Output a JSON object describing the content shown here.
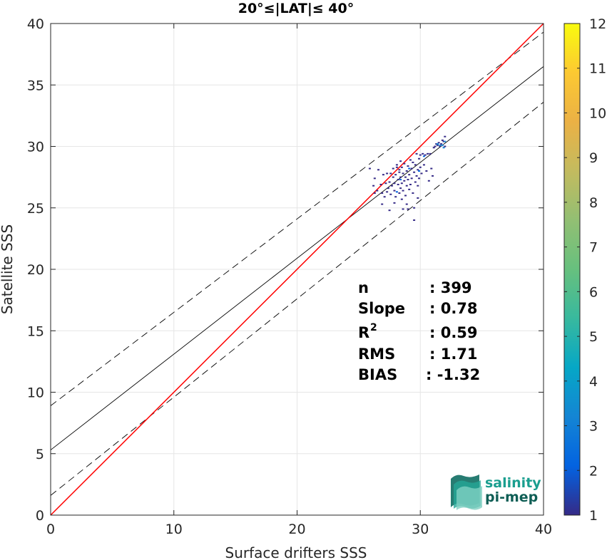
{
  "chart_data": {
    "type": "scatter",
    "title": "20°≤|LAT|≤ 40°",
    "xlabel": "Surface drifters SSS",
    "ylabel": "Satellite SSS",
    "xlim": [
      0,
      40
    ],
    "ylim": [
      0,
      40
    ],
    "x_ticks": [
      "0",
      "10",
      "20",
      "30",
      "40"
    ],
    "y_ticks": [
      "0",
      "5",
      "10",
      "15",
      "20",
      "25",
      "30",
      "35",
      "40"
    ],
    "grid": true,
    "lines": {
      "identity": {
        "color": "#ff0000",
        "intercept": 0,
        "slope": 1
      },
      "regression": {
        "color": "#000000",
        "intercept": 5.3,
        "slope": 0.78
      },
      "upper_band": {
        "color": "#000000",
        "style": "dashed",
        "intercept": 8.9,
        "slope": 0.76
      },
      "lower_band": {
        "color": "#000000",
        "style": "dashed",
        "intercept": 1.6,
        "slope": 0.8
      }
    },
    "stats": [
      {
        "label": "n",
        "value": ": 399"
      },
      {
        "label": "Slope",
        "value": ": 0.78"
      },
      {
        "label": "R",
        "sup": "2",
        "value": ": 0.59"
      },
      {
        "label": "RMS",
        "value": ": 1.71"
      },
      {
        "label": "BIAS",
        "value": ": -1.32"
      }
    ],
    "colorbar": {
      "min": 1,
      "max": 12,
      "ticks": [
        "1",
        "2",
        "3",
        "4",
        "5",
        "6",
        "7",
        "8",
        "9",
        "10",
        "11",
        "12"
      ],
      "colormap": "parula"
    },
    "points": [
      [
        25.9,
        28.2
      ],
      [
        26.6,
        28.1
      ],
      [
        26.3,
        27.4
      ],
      [
        26.2,
        26.8
      ],
      [
        26.3,
        26.2
      ],
      [
        26.5,
        26.4
      ],
      [
        26.8,
        26.9
      ],
      [
        26.9,
        26.2
      ],
      [
        27.0,
        27.7
      ],
      [
        27.1,
        25.9
      ],
      [
        27.2,
        27.0
      ],
      [
        27.3,
        26.3
      ],
      [
        27.3,
        27.8
      ],
      [
        27.4,
        26.6
      ],
      [
        27.5,
        27.1
      ],
      [
        27.6,
        26.1
      ],
      [
        27.6,
        27.8
      ],
      [
        27.7,
        26.8
      ],
      [
        27.8,
        27.5
      ],
      [
        27.8,
        28.2
      ],
      [
        27.9,
        26.4
      ],
      [
        27.9,
        27.0
      ],
      [
        28.0,
        25.9
      ],
      [
        28.0,
        27.7
      ],
      [
        28.1,
        28.3
      ],
      [
        28.1,
        28.5
      ],
      [
        28.2,
        26.9
      ],
      [
        28.2,
        27.3
      ],
      [
        28.3,
        26.2
      ],
      [
        28.3,
        27.9
      ],
      [
        28.3,
        28.1
      ],
      [
        28.4,
        26.6
      ],
      [
        28.4,
        27.5
      ],
      [
        28.4,
        28.8
      ],
      [
        28.5,
        25.7
      ],
      [
        28.5,
        27.0
      ],
      [
        28.5,
        28.3
      ],
      [
        28.6,
        26.4
      ],
      [
        28.6,
        27.8
      ],
      [
        28.7,
        27.2
      ],
      [
        28.7,
        28.6
      ],
      [
        28.8,
        26.0
      ],
      [
        28.8,
        27.5
      ],
      [
        28.9,
        26.8
      ],
      [
        28.9,
        28.0
      ],
      [
        29.0,
        24.9
      ],
      [
        29.0,
        27.3
      ],
      [
        29.0,
        28.4
      ],
      [
        29.1,
        26.5
      ],
      [
        29.1,
        27.7
      ],
      [
        29.2,
        28.9
      ],
      [
        29.2,
        26.9
      ],
      [
        29.3,
        28.2
      ],
      [
        29.3,
        27.4
      ],
      [
        29.4,
        26.2
      ],
      [
        29.4,
        28.7
      ],
      [
        29.5,
        27.9
      ],
      [
        29.5,
        24.0
      ],
      [
        29.5,
        25.0
      ],
      [
        29.6,
        27.1
      ],
      [
        29.6,
        28.5
      ],
      [
        29.7,
        29.4
      ],
      [
        29.7,
        27.6
      ],
      [
        29.8,
        26.8
      ],
      [
        29.8,
        28.1
      ],
      [
        29.9,
        29.0
      ],
      [
        29.9,
        27.4
      ],
      [
        30.0,
        28.3
      ],
      [
        30.0,
        29.3
      ],
      [
        30.1,
        27.8
      ],
      [
        30.2,
        29.4
      ],
      [
        30.3,
        28.5
      ],
      [
        30.4,
        29.3
      ],
      [
        30.5,
        28.0
      ],
      [
        30.6,
        29.4
      ],
      [
        30.8,
        29.4
      ],
      [
        31.0,
        27.6
      ],
      [
        31.2,
        30.0
      ],
      [
        31.4,
        30.1
      ],
      [
        31.5,
        30.3
      ],
      [
        31.6,
        30.0
      ],
      [
        31.7,
        30.2
      ],
      [
        31.8,
        30.5
      ],
      [
        31.9,
        30.4
      ],
      [
        32.0,
        30.8
      ],
      [
        32.0,
        30.0
      ],
      [
        31.3,
        30.2
      ],
      [
        31.1,
        29.9
      ],
      [
        30.9,
        28.2
      ],
      [
        30.7,
        27.2
      ],
      [
        29.8,
        25.8
      ],
      [
        27.9,
        25.4
      ],
      [
        27.5,
        24.8
      ],
      [
        26.9,
        25.3
      ],
      [
        28.9,
        25.3
      ],
      [
        28.6,
        24.9
      ]
    ],
    "hot_points": [
      [
        31.4,
        30.2
      ],
      [
        31.6,
        30.1
      ],
      [
        31.8,
        30.1
      ],
      [
        32.0,
        30.4
      ],
      [
        31.9,
        29.9
      ],
      [
        29.9,
        28.0
      ],
      [
        28.1,
        26.3
      ],
      [
        28.4,
        27.3
      ],
      [
        29.1,
        28.2
      ],
      [
        30.3,
        29.2
      ]
    ]
  },
  "logo": {
    "line1": "salinity",
    "line2": "pi-mep",
    "color1": "#1a9e8f",
    "color2": "#0f5e55"
  }
}
